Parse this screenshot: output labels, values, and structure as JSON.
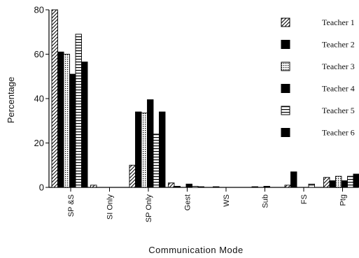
{
  "chart_data": {
    "type": "bar",
    "xlabel": "Communication Mode",
    "ylabel": "Percentage",
    "ylim": [
      0,
      80
    ],
    "yticks": [
      "0",
      "20",
      "40",
      "60",
      "80"
    ],
    "grid": false,
    "legend_position": "right",
    "categories": [
      "SP &S",
      "SI Only",
      "SP Only",
      "Gest",
      "WS",
      "Sub",
      "FS",
      "Ptg"
    ],
    "series": [
      {
        "name": "Teacher 1",
        "pattern": "diag",
        "values": [
          80,
          1,
          10,
          2,
          0,
          0,
          1,
          4.5
        ]
      },
      {
        "name": "Teacher 2",
        "pattern": "solid",
        "values": [
          61,
          0,
          34,
          0.5,
          0.3,
          0.3,
          7,
          3
        ]
      },
      {
        "name": "Teacher 3",
        "pattern": "dots",
        "values": [
          60,
          0,
          33.5,
          0,
          0,
          0,
          0,
          5
        ]
      },
      {
        "name": "Teacher 4",
        "pattern": "solid",
        "values": [
          51,
          0,
          39.5,
          1.5,
          0,
          0.5,
          0,
          3
        ]
      },
      {
        "name": "Teacher 5",
        "pattern": "hlines",
        "values": [
          69,
          0,
          24,
          0.5,
          0,
          0,
          1.5,
          5
        ]
      },
      {
        "name": "Teacher 6",
        "pattern": "solid",
        "values": [
          56.5,
          0,
          34,
          0.3,
          0,
          0,
          0,
          6
        ]
      }
    ]
  }
}
